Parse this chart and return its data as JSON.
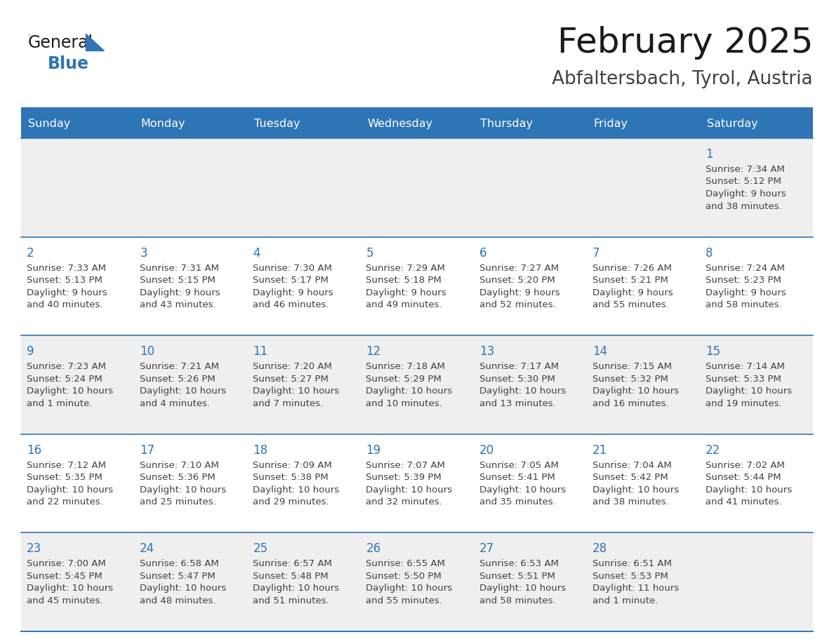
{
  "title": "February 2025",
  "subtitle": "Abfaltersbach, Tyrol, Austria",
  "header_bg": "#2E75B6",
  "header_text_color": "#FFFFFF",
  "cell_bg_odd": "#EFEFEF",
  "cell_bg_even": "#FFFFFF",
  "day_number_color": "#2E75B6",
  "info_text_color": "#404040",
  "row_border_color": "#2E75B6",
  "days_of_week": [
    "Sunday",
    "Monday",
    "Tuesday",
    "Wednesday",
    "Thursday",
    "Friday",
    "Saturday"
  ],
  "calendar_data": [
    [
      null,
      null,
      null,
      null,
      null,
      null,
      {
        "day": 1,
        "sunrise": "7:34 AM",
        "sunset": "5:12 PM",
        "daylight": "9 hours",
        "daylight2": "and 38 minutes."
      }
    ],
    [
      {
        "day": 2,
        "sunrise": "7:33 AM",
        "sunset": "5:13 PM",
        "daylight": "9 hours",
        "daylight2": "and 40 minutes."
      },
      {
        "day": 3,
        "sunrise": "7:31 AM",
        "sunset": "5:15 PM",
        "daylight": "9 hours",
        "daylight2": "and 43 minutes."
      },
      {
        "day": 4,
        "sunrise": "7:30 AM",
        "sunset": "5:17 PM",
        "daylight": "9 hours",
        "daylight2": "and 46 minutes."
      },
      {
        "day": 5,
        "sunrise": "7:29 AM",
        "sunset": "5:18 PM",
        "daylight": "9 hours",
        "daylight2": "and 49 minutes."
      },
      {
        "day": 6,
        "sunrise": "7:27 AM",
        "sunset": "5:20 PM",
        "daylight": "9 hours",
        "daylight2": "and 52 minutes."
      },
      {
        "day": 7,
        "sunrise": "7:26 AM",
        "sunset": "5:21 PM",
        "daylight": "9 hours",
        "daylight2": "and 55 minutes."
      },
      {
        "day": 8,
        "sunrise": "7:24 AM",
        "sunset": "5:23 PM",
        "daylight": "9 hours",
        "daylight2": "and 58 minutes."
      }
    ],
    [
      {
        "day": 9,
        "sunrise": "7:23 AM",
        "sunset": "5:24 PM",
        "daylight": "10 hours",
        "daylight2": "and 1 minute."
      },
      {
        "day": 10,
        "sunrise": "7:21 AM",
        "sunset": "5:26 PM",
        "daylight": "10 hours",
        "daylight2": "and 4 minutes."
      },
      {
        "day": 11,
        "sunrise": "7:20 AM",
        "sunset": "5:27 PM",
        "daylight": "10 hours",
        "daylight2": "and 7 minutes."
      },
      {
        "day": 12,
        "sunrise": "7:18 AM",
        "sunset": "5:29 PM",
        "daylight": "10 hours",
        "daylight2": "and 10 minutes."
      },
      {
        "day": 13,
        "sunrise": "7:17 AM",
        "sunset": "5:30 PM",
        "daylight": "10 hours",
        "daylight2": "and 13 minutes."
      },
      {
        "day": 14,
        "sunrise": "7:15 AM",
        "sunset": "5:32 PM",
        "daylight": "10 hours",
        "daylight2": "and 16 minutes."
      },
      {
        "day": 15,
        "sunrise": "7:14 AM",
        "sunset": "5:33 PM",
        "daylight": "10 hours",
        "daylight2": "and 19 minutes."
      }
    ],
    [
      {
        "day": 16,
        "sunrise": "7:12 AM",
        "sunset": "5:35 PM",
        "daylight": "10 hours",
        "daylight2": "and 22 minutes."
      },
      {
        "day": 17,
        "sunrise": "7:10 AM",
        "sunset": "5:36 PM",
        "daylight": "10 hours",
        "daylight2": "and 25 minutes."
      },
      {
        "day": 18,
        "sunrise": "7:09 AM",
        "sunset": "5:38 PM",
        "daylight": "10 hours",
        "daylight2": "and 29 minutes."
      },
      {
        "day": 19,
        "sunrise": "7:07 AM",
        "sunset": "5:39 PM",
        "daylight": "10 hours",
        "daylight2": "and 32 minutes."
      },
      {
        "day": 20,
        "sunrise": "7:05 AM",
        "sunset": "5:41 PM",
        "daylight": "10 hours",
        "daylight2": "and 35 minutes."
      },
      {
        "day": 21,
        "sunrise": "7:04 AM",
        "sunset": "5:42 PM",
        "daylight": "10 hours",
        "daylight2": "and 38 minutes."
      },
      {
        "day": 22,
        "sunrise": "7:02 AM",
        "sunset": "5:44 PM",
        "daylight": "10 hours",
        "daylight2": "and 41 minutes."
      }
    ],
    [
      {
        "day": 23,
        "sunrise": "7:00 AM",
        "sunset": "5:45 PM",
        "daylight": "10 hours",
        "daylight2": "and 45 minutes."
      },
      {
        "day": 24,
        "sunrise": "6:58 AM",
        "sunset": "5:47 PM",
        "daylight": "10 hours",
        "daylight2": "and 48 minutes."
      },
      {
        "day": 25,
        "sunrise": "6:57 AM",
        "sunset": "5:48 PM",
        "daylight": "10 hours",
        "daylight2": "and 51 minutes."
      },
      {
        "day": 26,
        "sunrise": "6:55 AM",
        "sunset": "5:50 PM",
        "daylight": "10 hours",
        "daylight2": "and 55 minutes."
      },
      {
        "day": 27,
        "sunrise": "6:53 AM",
        "sunset": "5:51 PM",
        "daylight": "10 hours",
        "daylight2": "and 58 minutes."
      },
      {
        "day": 28,
        "sunrise": "6:51 AM",
        "sunset": "5:53 PM",
        "daylight": "11 hours",
        "daylight2": "and 1 minute."
      },
      null
    ]
  ]
}
